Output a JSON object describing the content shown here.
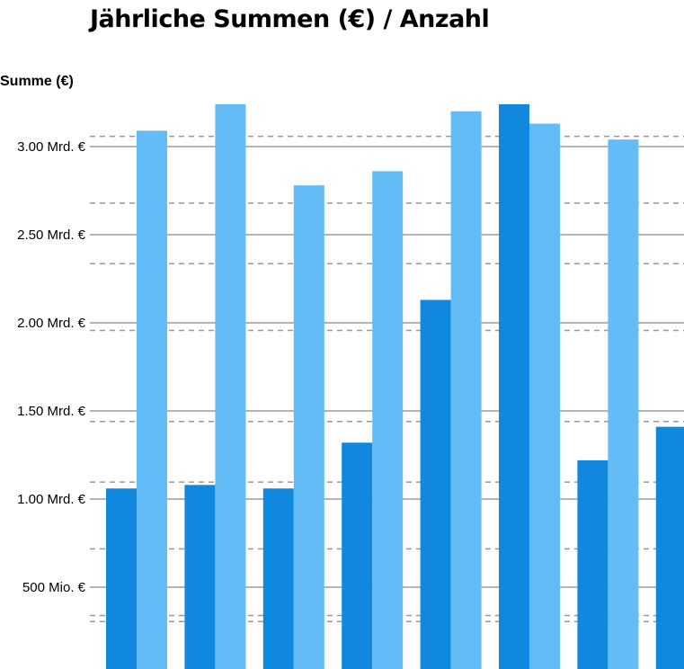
{
  "chart_data": {
    "type": "bar",
    "title": "Jährliche Summen (€) / Anzahl",
    "ylabel": "Summe (€)",
    "xlabel": "",
    "ylim": [
      0,
      3300000000
    ],
    "y_ticks": [
      {
        "value": 500000000,
        "label": "500 Mio. €"
      },
      {
        "value": 1000000000,
        "label": "1.00 Mrd. €"
      },
      {
        "value": 1500000000,
        "label": "1.50 Mrd. €"
      },
      {
        "value": 2000000000,
        "label": "2.00 Mrd. €"
      },
      {
        "value": 2500000000,
        "label": "2.50 Mrd. €"
      },
      {
        "value": 3000000000,
        "label": "3.00 Mrd. €"
      }
    ],
    "secondary_grid_values": [
      3600000000,
      4000000000,
      8400000000,
      12800000000,
      16800000000,
      22800000000,
      27200000000,
      31200000000,
      35600000000,
      40000000000
    ],
    "grid": true,
    "legend": "none",
    "series": [
      {
        "color": "#0f88dd",
        "values": [
          1060000000,
          1080000000,
          1060000000,
          1320000000,
          2130000000,
          3240000000,
          1220000000,
          1410000000
        ]
      },
      {
        "color": "#64bcf6",
        "values": [
          3090000000,
          3240000000,
          2780000000,
          2860000000,
          3200000000,
          3130000000,
          3040000000,
          null
        ]
      }
    ],
    "colors": {
      "solid_grid": "#888888",
      "dashed_grid": "#999999"
    }
  }
}
